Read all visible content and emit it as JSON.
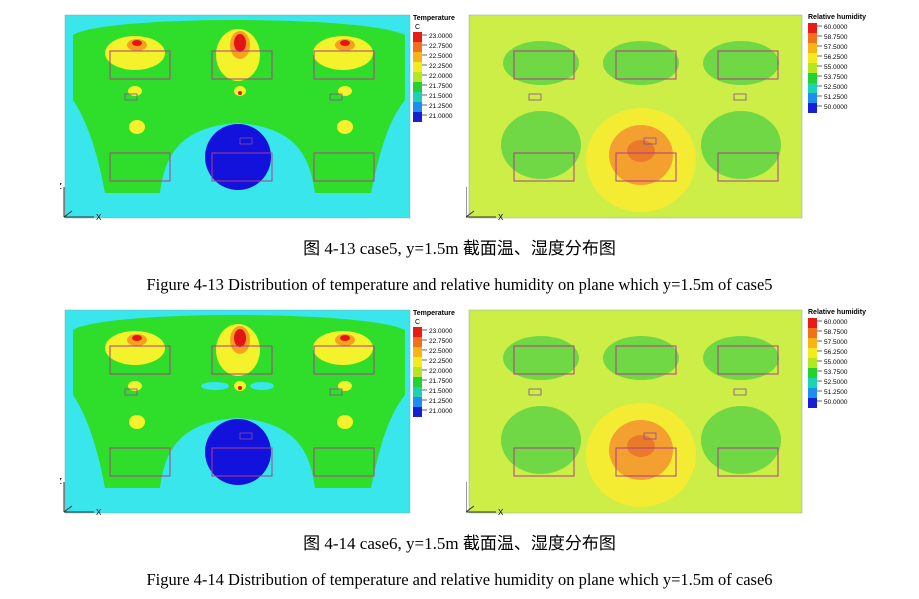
{
  "figures": [
    {
      "caption_cn": "图 4-13  case5, y=1.5m 截面温、湿度分布图",
      "caption_en": "Figure 4-13 Distribution of temperature and relative humidity on plane which y=1.5m of case5",
      "temperature_plot": {
        "legend_title": "Temperature",
        "legend_unit": "C",
        "levels": [
          "23.0000",
          "22.7500",
          "22.5000",
          "22.2500",
          "22.0000",
          "21.7500",
          "21.5000",
          "21.2500",
          "21.0000"
        ],
        "axis_z": "Z",
        "axis_x": "X"
      },
      "humidity_plot": {
        "legend_title": "Relative humidity",
        "levels": [
          "60.0000",
          "58.7500",
          "57.5000",
          "56.2500",
          "55.0000",
          "53.7500",
          "52.5000",
          "51.2500",
          "50.0000"
        ],
        "axis_z": "Z",
        "axis_x": "X"
      }
    },
    {
      "caption_cn": "图 4-14  case6, y=1.5m 截面温、湿度分布图",
      "caption_en": "Figure 4-14 Distribution of temperature and relative humidity on plane which y=1.5m of case6",
      "temperature_plot": {
        "legend_title": "Temperature",
        "legend_unit": "C",
        "levels": [
          "23.0000",
          "22.7500",
          "22.5000",
          "22.2500",
          "22.0000",
          "21.7500",
          "21.5000",
          "21.2500",
          "21.0000"
        ],
        "axis_z": "Z",
        "axis_x": "X"
      },
      "humidity_plot": {
        "legend_title": "Relative humidity",
        "levels": [
          "60.0000",
          "58.7500",
          "57.5000",
          "56.2500",
          "55.0000",
          "53.7500",
          "52.5000",
          "51.2500",
          "50.0000"
        ],
        "axis_z": "Z",
        "axis_x": "X"
      }
    }
  ],
  "colors": {
    "legend_scale": [
      "#e81c14",
      "#f2701a",
      "#f8b414",
      "#f2ec1e",
      "#b4e622",
      "#22d232",
      "#1ad2b4",
      "#1e8cf0",
      "#1420d2"
    ],
    "temp_background": "#38e6ec",
    "temp_green": "#2ede2a",
    "temp_yellow": "#f4f22a",
    "temp_orange": "#f6a01e",
    "temp_red": "#e21414",
    "temp_blue": "#1212dc",
    "hum_background": "#cdee46",
    "hum_green": "#5ed444",
    "hum_yellow": "#f4ec32",
    "hum_orange": "#f4a030",
    "hum_red": "#e87a2a",
    "outline": "#b03a8c"
  }
}
